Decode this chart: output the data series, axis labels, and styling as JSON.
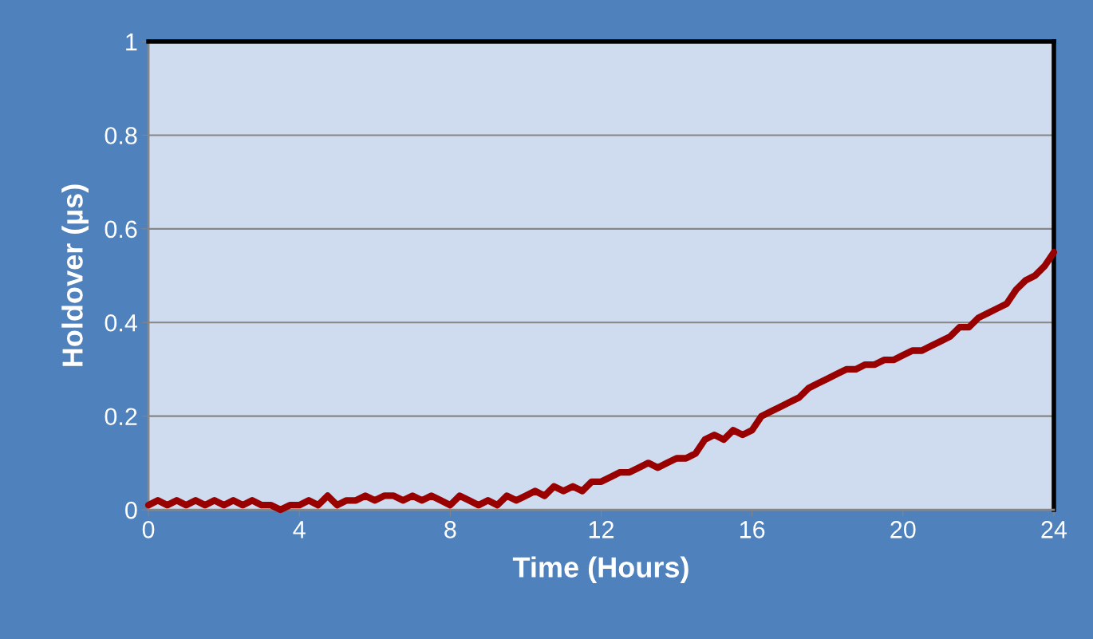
{
  "chart_data": {
    "type": "line",
    "xlabel": "Time (Hours)",
    "ylabel": "Holdover (µs)",
    "xlim": [
      0,
      24
    ],
    "xticks": [
      0,
      4,
      8,
      12,
      16,
      20,
      24
    ],
    "ylim": [
      0,
      1
    ],
    "yticks": [
      0,
      0.2,
      0.4,
      0.6,
      0.8,
      1
    ],
    "grid": "y",
    "series": [
      {
        "color": "#990000",
        "x": [
          0,
          0.25,
          0.5,
          0.75,
          1,
          1.25,
          1.5,
          1.75,
          2,
          2.25,
          2.5,
          2.75,
          3,
          3.25,
          3.5,
          3.75,
          4,
          4.25,
          4.5,
          4.75,
          5,
          5.25,
          5.5,
          5.75,
          6,
          6.25,
          6.5,
          6.75,
          7,
          7.25,
          7.5,
          7.75,
          8,
          8.25,
          8.5,
          8.75,
          9,
          9.25,
          9.5,
          9.75,
          10,
          10.25,
          10.5,
          10.75,
          11,
          11.25,
          11.5,
          11.75,
          12,
          12.25,
          12.5,
          12.75,
          13,
          13.25,
          13.5,
          13.75,
          14,
          14.25,
          14.5,
          14.75,
          15,
          15.25,
          15.5,
          15.75,
          16,
          16.25,
          16.5,
          16.75,
          17,
          17.25,
          17.5,
          17.75,
          18,
          18.25,
          18.5,
          18.75,
          19,
          19.25,
          19.5,
          19.75,
          20,
          20.25,
          20.5,
          20.75,
          21,
          21.25,
          21.5,
          21.75,
          22,
          22.25,
          22.5,
          22.75,
          23,
          23.25,
          23.5,
          23.75,
          24
        ],
        "values": [
          0.01,
          0.02,
          0.01,
          0.02,
          0.01,
          0.02,
          0.01,
          0.02,
          0.01,
          0.02,
          0.01,
          0.02,
          0.01,
          0.01,
          0.0,
          0.01,
          0.01,
          0.02,
          0.01,
          0.03,
          0.01,
          0.02,
          0.02,
          0.03,
          0.02,
          0.03,
          0.03,
          0.02,
          0.03,
          0.02,
          0.03,
          0.02,
          0.01,
          0.03,
          0.02,
          0.01,
          0.02,
          0.01,
          0.03,
          0.02,
          0.03,
          0.04,
          0.03,
          0.05,
          0.04,
          0.05,
          0.04,
          0.06,
          0.06,
          0.07,
          0.08,
          0.08,
          0.09,
          0.1,
          0.09,
          0.1,
          0.11,
          0.11,
          0.12,
          0.15,
          0.16,
          0.15,
          0.17,
          0.16,
          0.17,
          0.2,
          0.21,
          0.22,
          0.23,
          0.24,
          0.26,
          0.27,
          0.28,
          0.29,
          0.3,
          0.3,
          0.31,
          0.31,
          0.32,
          0.32,
          0.33,
          0.34,
          0.34,
          0.35,
          0.36,
          0.37,
          0.39,
          0.39,
          0.41,
          0.42,
          0.43,
          0.44,
          0.47,
          0.49,
          0.5,
          0.52,
          0.55
        ]
      }
    ]
  }
}
